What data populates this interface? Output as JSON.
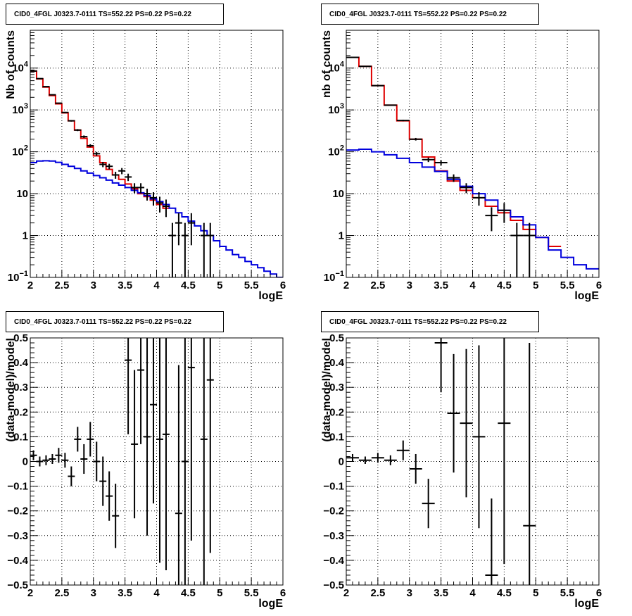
{
  "colors": {
    "data": "#000000",
    "total_model": "#e00000",
    "component_model": "#0000dd",
    "grid": "#000000"
  },
  "chart_data": [
    {
      "type": "line",
      "title": "CID0_4FGL J0323.7-0111 TS=552.22 PS=0.22 PS=0.22",
      "xlabel": "logE",
      "ylabel": "Nb of counts",
      "xlim": [
        2,
        6
      ],
      "ylim": [
        0.1,
        80000
      ],
      "yscale": "log",
      "grid": true,
      "x_ticks": [
        "2",
        "2.5",
        "3",
        "3.5",
        "4",
        "4.5",
        "5",
        "5.5",
        "6"
      ],
      "y_ticks": [
        "10⁻¹",
        "1",
        "10",
        "10²",
        "10³",
        "10⁴"
      ],
      "series": [
        {
          "style": "step",
          "color": "red",
          "x": [
            2,
            2.1,
            2.2,
            2.3,
            2.4,
            2.5,
            2.6,
            2.7,
            2.8,
            2.9,
            3.0,
            3.1,
            3.2,
            3.3,
            3.4,
            3.5,
            3.6,
            3.7,
            3.8,
            3.9,
            4.0,
            4.1
          ],
          "values": [
            8500,
            5500,
            3500,
            2200,
            1400,
            850,
            550,
            330,
            210,
            130,
            80,
            55,
            38,
            28,
            22,
            17,
            13,
            10,
            8.5,
            7,
            5.5,
            4.5
          ]
        },
        {
          "style": "step",
          "color": "blue",
          "x": [
            2,
            2.1,
            2.2,
            2.3,
            2.4,
            2.5,
            2.6,
            2.7,
            2.8,
            2.9,
            3.0,
            3.1,
            3.2,
            3.3,
            3.4,
            3.5,
            3.6,
            3.7,
            3.8,
            3.9,
            4.0,
            4.1,
            4.2,
            4.3,
            4.4,
            4.5,
            4.6,
            4.7,
            4.8,
            4.9,
            5.0,
            5.1,
            5.2,
            5.3,
            5.4,
            5.5,
            5.6,
            5.7,
            5.8,
            5.9
          ],
          "values": [
            55,
            60,
            61,
            60,
            56,
            50,
            45,
            40,
            35,
            31,
            27,
            24,
            21,
            18,
            16,
            14,
            12,
            10.5,
            9,
            7.5,
            6.5,
            5.5,
            4.5,
            3.5,
            2.8,
            2.2,
            1.7,
            1.3,
            1,
            0.75,
            0.55,
            0.45,
            0.35,
            0.3,
            0.24,
            0.2,
            0.17,
            0.14,
            0.12,
            0.1
          ]
        },
        {
          "style": "points",
          "color": "black",
          "x": [
            2.05,
            2.15,
            2.25,
            2.35,
            2.45,
            2.55,
            2.65,
            2.75,
            2.85,
            2.95,
            3.05,
            3.15,
            3.25,
            3.35,
            3.45,
            3.55,
            3.65,
            3.75,
            3.85,
            3.95,
            4.05,
            4.15,
            4.25,
            4.35,
            4.45,
            4.55,
            4.75,
            4.85
          ],
          "values": [
            8500,
            5600,
            3600,
            2300,
            1450,
            870,
            550,
            330,
            230,
            140,
            90,
            50,
            45,
            28,
            35,
            25,
            14,
            14,
            10,
            8,
            6,
            5,
            1,
            2,
            1,
            2,
            1,
            1
          ]
        }
      ]
    },
    {
      "type": "line",
      "title": "CID0_4FGL J0323.7-0111 TS=552.22 PS=0.22 PS=0.22",
      "xlabel": "logE",
      "ylabel": "nb of counts",
      "xlim": [
        2,
        6
      ],
      "ylim": [
        0.1,
        80000
      ],
      "yscale": "log",
      "grid": true,
      "x_ticks": [
        "2",
        "2.5",
        "3",
        "3.5",
        "4",
        "4.5",
        "5",
        "5.5",
        "6"
      ],
      "y_ticks": [
        "10⁻¹",
        "1",
        "10",
        "10²",
        "10³",
        "10⁴"
      ],
      "series": [
        {
          "style": "step",
          "color": "red",
          "x": [
            2,
            2.2,
            2.4,
            2.6,
            2.8,
            3.0,
            3.2,
            3.4,
            3.6,
            3.8,
            4.0,
            4.2,
            4.4,
            4.6,
            4.8,
            5.0,
            5.2
          ],
          "values": [
            18000,
            11000,
            3800,
            1300,
            550,
            200,
            75,
            35,
            20,
            12,
            8,
            5,
            3.5,
            2.3,
            1.4,
            0.9,
            0.55
          ]
        },
        {
          "style": "step",
          "color": "blue",
          "x": [
            2,
            2.2,
            2.4,
            2.6,
            2.8,
            3.0,
            3.2,
            3.4,
            3.6,
            3.8,
            4.0,
            4.2,
            4.4,
            4.6,
            4.8,
            5.0,
            5.2,
            5.4,
            5.6,
            5.8
          ],
          "values": [
            110,
            115,
            100,
            85,
            70,
            55,
            43,
            34,
            22,
            15,
            10,
            7,
            4,
            2.8,
            1.8,
            0.9,
            0.45,
            0.3,
            0.2,
            0.16
          ]
        },
        {
          "style": "points",
          "color": "black",
          "x": [
            2.1,
            2.3,
            2.5,
            2.7,
            2.9,
            3.1,
            3.3,
            3.5,
            3.7,
            3.9,
            4.1,
            4.3,
            4.5,
            4.7,
            4.9
          ],
          "values": [
            18000,
            11000,
            3800,
            1300,
            560,
            200,
            65,
            55,
            24,
            14,
            8,
            3,
            4,
            1,
            1
          ]
        }
      ]
    },
    {
      "type": "scatter",
      "title": "CID0_4FGL J0323.7-0111 TS=552.22 PS=0.22 PS=0.22",
      "xlabel": "logE",
      "ylabel": "(data-model)/model",
      "xlim": [
        2,
        6
      ],
      "ylim": [
        -0.5,
        0.5
      ],
      "grid": true,
      "x_ticks": [
        "2",
        "2.5",
        "3",
        "3.5",
        "4",
        "4.5",
        "5",
        "5.5",
        "6"
      ],
      "y_ticks": [
        "−0.5",
        "−0.4",
        "−0.3",
        "−0.2",
        "−0.1",
        "0",
        "0.1",
        "0.2",
        "0.3",
        "0.4",
        "0.5"
      ],
      "points": {
        "x": [
          2.05,
          2.15,
          2.25,
          2.35,
          2.45,
          2.55,
          2.65,
          2.75,
          2.85,
          2.95,
          3.05,
          3.15,
          3.25,
          3.35,
          3.55,
          3.65,
          3.75,
          3.85,
          3.95,
          4.05,
          4.15,
          4.35,
          4.45,
          4.55,
          4.75,
          4.85
        ],
        "y": [
          0.025,
          0.0,
          0.005,
          0.01,
          0.025,
          0.005,
          -0.06,
          0.09,
          0.01,
          0.09,
          0.0,
          -0.08,
          -0.14,
          -0.22,
          0.41,
          0.07,
          0.37,
          0.1,
          0.23,
          0.09,
          0.11,
          -0.21,
          0.0,
          0.38,
          0.09,
          0.33
        ],
        "err": [
          0.02,
          0.02,
          0.02,
          0.02,
          0.03,
          0.03,
          0.04,
          0.05,
          0.06,
          0.07,
          0.08,
          0.1,
          0.1,
          0.13,
          0.3,
          0.3,
          0.3,
          0.4,
          0.4,
          0.5,
          0.55,
          0.6,
          0.7,
          0.7,
          0.7,
          0.7
        ]
      }
    },
    {
      "type": "scatter",
      "title": "CID0_4FGL J0323.7-0111 TS=552.22 PS=0.22 PS=0.22",
      "xlabel": "logE",
      "ylabel": "(data-model)/model",
      "xlim": [
        2,
        6
      ],
      "ylim": [
        -0.5,
        0.5
      ],
      "grid": true,
      "x_ticks": [
        "2",
        "2.5",
        "3",
        "3.5",
        "4",
        "4.5",
        "5",
        "5.5",
        "6"
      ],
      "y_ticks": [
        "−0.5",
        "−0.4",
        "−0.3",
        "−0.2",
        "−0.1",
        "0",
        "0.1",
        "0.2",
        "0.3",
        "0.4",
        "0.5"
      ],
      "points": {
        "x": [
          2.1,
          2.3,
          2.5,
          2.7,
          2.9,
          3.1,
          3.3,
          3.5,
          3.7,
          3.9,
          4.1,
          4.3,
          4.5,
          4.9
        ],
        "y": [
          0.015,
          0.005,
          0.015,
          0.005,
          0.045,
          -0.03,
          -0.17,
          0.48,
          0.195,
          0.155,
          0.1,
          -0.46,
          0.155,
          -0.26
        ]
      },
      "err": [
        0.015,
        0.015,
        0.02,
        0.02,
        0.04,
        0.06,
        0.1,
        0.2,
        0.24,
        0.3,
        0.37,
        0.31,
        0.57,
        0.74
      ]
    }
  ]
}
